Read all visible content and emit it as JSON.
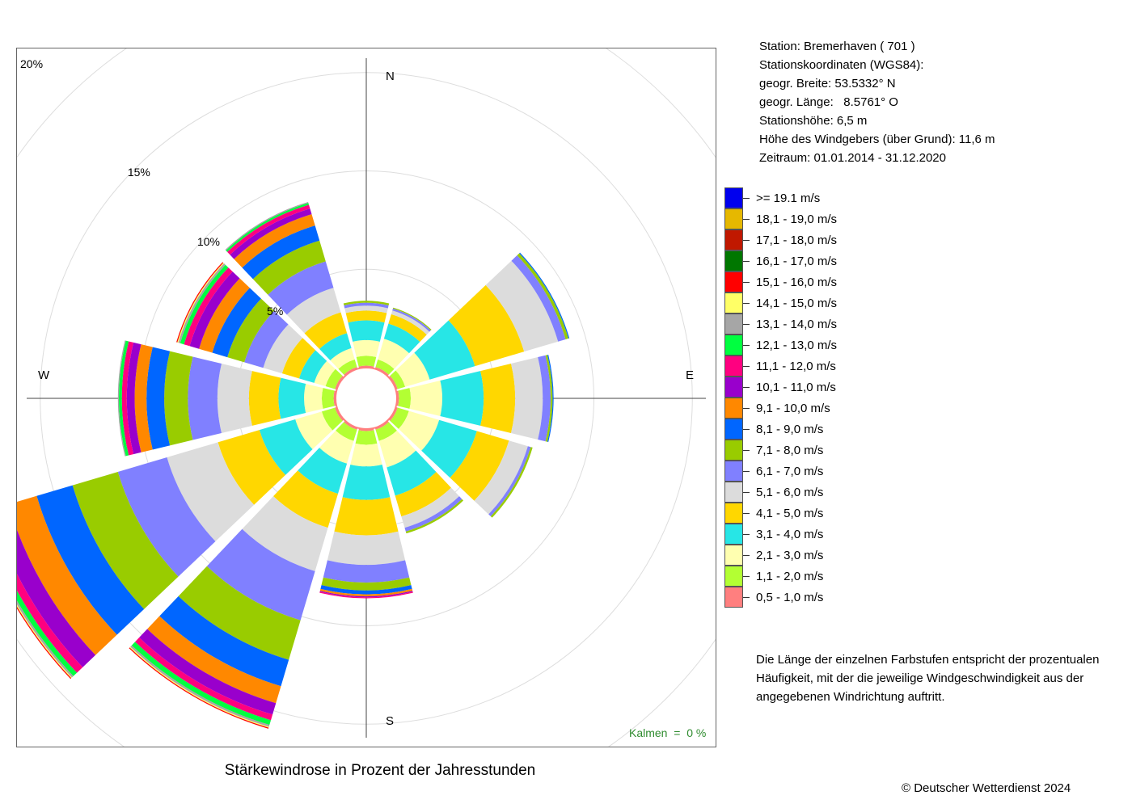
{
  "station": {
    "line1": "Station:  Bremerhaven  ( 701 )",
    "line2": "Stationskoordinaten (WGS84):",
    "line3": "geogr. Breite: 53.5332° N",
    "line4": "geogr. Länge:   8.5761° O",
    "line5": "Stationshöhe: 6,5 m",
    "line6": "Höhe des Windgebers (über Grund): 11,6 m",
    "line7": "Zeitraum: 01.01.2014 - 31.12.2020"
  },
  "note": {
    "line1": "Die Länge der einzelnen Farbstufen entspricht der prozentualen",
    "line2": "Häufigkeit, mit der die jeweilige Windgeschwindigkeit aus der",
    "line3": "angegebenen Windrichtung auftritt."
  },
  "caption": "Stärkewindrose in Prozent der Jahresstunden",
  "calm": "Kalmen  =  0 %",
  "copyright": "© Deutscher Wetterdienst  2024",
  "chart_data": {
    "type": "polar-stacked-bar",
    "title": "Stärkewindrose in Prozent der Jahresstunden",
    "rmax": 20,
    "ring_values": [
      5,
      10,
      15,
      20
    ],
    "ring_labels": [
      "5%",
      "10%",
      "15%",
      "20%"
    ],
    "directions": [
      "N",
      "E",
      "S",
      "W"
    ],
    "sector_angles": [
      0,
      30,
      60,
      90,
      120,
      150,
      180,
      210,
      240,
      270,
      300,
      330
    ],
    "bins": [
      {
        "label": "0,5 - 1,0 m/s",
        "color": "#ff7f7f"
      },
      {
        "label": "1,1 - 2,0 m/s",
        "color": "#b3ff33"
      },
      {
        "label": "2,1 - 3,0 m/s",
        "color": "#ffffb0"
      },
      {
        "label": "3,1 - 4,0 m/s",
        "color": "#27e6e6"
      },
      {
        "label": "4,1 - 5,0 m/s",
        "color": "#ffd700"
      },
      {
        "label": "5,1 - 6,0 m/s",
        "color": "#dcdcdc"
      },
      {
        "label": "6,1 - 7,0 m/s",
        "color": "#8080ff"
      },
      {
        "label": "7,1 - 8,0 m/s",
        "color": "#99cc00"
      },
      {
        "label": "8,1 - 9,0 m/s",
        "color": "#0066ff"
      },
      {
        "label": "9,1 - 10,0 m/s",
        "color": "#ff8800"
      },
      {
        "label": "10,1 - 11,0 m/s",
        "color": "#9900cc"
      },
      {
        "label": "11,1 - 12,0 m/s",
        "color": "#ff0080"
      },
      {
        "label": "12,1 - 13,0 m/s",
        "color": "#00ff40"
      },
      {
        "label": "13,1 - 14,0 m/s",
        "color": "#a6a6a6"
      },
      {
        "label": "14,1 - 15,0 m/s",
        "color": "#ffff66"
      },
      {
        "label": "15,1 - 16,0 m/s",
        "color": "#ff0000"
      },
      {
        "label": "16,1 - 17,0 m/s",
        "color": "#007700"
      },
      {
        "label": "17,1 - 18,0 m/s",
        "color": "#c01800"
      },
      {
        "label": "18,1 - 19,0 m/s",
        "color": "#e6b800"
      },
      {
        "label": ">= 19.1 m/s",
        "color": "#0000ee"
      }
    ],
    "sectors": [
      {
        "angle": 0,
        "values": [
          0.1,
          0.5,
          0.8,
          1.0,
          0.5,
          0.25,
          0.15,
          0.1,
          0,
          0,
          0,
          0,
          0,
          0,
          0,
          0,
          0,
          0,
          0,
          0
        ]
      },
      {
        "angle": 30,
        "values": [
          0.1,
          0.4,
          1.1,
          0.8,
          0.5,
          0.2,
          0.1,
          0.05,
          0,
          0,
          0,
          0,
          0,
          0,
          0,
          0,
          0,
          0,
          0,
          0
        ]
      },
      {
        "angle": 60,
        "values": [
          0.1,
          0.4,
          1.3,
          2.4,
          2.6,
          1.8,
          0.4,
          0.15,
          0.05,
          0,
          0,
          0,
          0,
          0,
          0,
          0,
          0,
          0,
          0,
          0
        ]
      },
      {
        "angle": 90,
        "values": [
          0.1,
          0.6,
          1.6,
          2.1,
          1.6,
          1.4,
          0.4,
          0.1,
          0.05,
          0,
          0,
          0,
          0,
          0,
          0,
          0,
          0,
          0,
          0,
          0
        ]
      },
      {
        "angle": 120,
        "values": [
          0.1,
          0.6,
          1.6,
          2.0,
          1.7,
          1.0,
          0.15,
          0.1,
          0,
          0,
          0,
          0,
          0,
          0,
          0,
          0,
          0,
          0,
          0,
          0
        ]
      },
      {
        "angle": 150,
        "values": [
          0.1,
          0.6,
          1.4,
          1.5,
          1.1,
          0.6,
          0.2,
          0.1,
          0,
          0,
          0,
          0,
          0,
          0,
          0,
          0,
          0,
          0,
          0,
          0
        ]
      },
      {
        "angle": 180,
        "values": [
          0.1,
          0.7,
          1.1,
          1.7,
          1.8,
          1.5,
          0.9,
          0.4,
          0.2,
          0.1,
          0.05,
          0.05,
          0,
          0,
          0,
          0,
          0,
          0,
          0,
          0
        ]
      },
      {
        "angle": 210,
        "values": [
          0.1,
          0.6,
          1.2,
          1.6,
          1.8,
          2.3,
          2.6,
          2.1,
          1.4,
          0.9,
          0.6,
          0.3,
          0.25,
          0.1,
          0.05,
          0.05,
          0,
          0,
          0,
          0
        ]
      },
      {
        "angle": 240,
        "values": [
          0.1,
          0.7,
          1.4,
          1.9,
          2.2,
          2.7,
          2.6,
          2.4,
          1.9,
          1.5,
          0.9,
          0.4,
          0.25,
          0.1,
          0.05,
          0.05,
          0,
          0,
          0,
          0
        ]
      },
      {
        "angle": 270,
        "values": [
          0.1,
          0.6,
          0.9,
          1.3,
          1.5,
          1.6,
          1.5,
          1.2,
          0.9,
          0.6,
          0.4,
          0.25,
          0.15,
          0.05,
          0,
          0,
          0,
          0,
          0,
          0
        ]
      },
      {
        "angle": 300,
        "values": [
          0.1,
          0.5,
          0.6,
          0.8,
          0.9,
          1.0,
          1.0,
          0.9,
          0.8,
          0.7,
          0.5,
          0.3,
          0.2,
          0.1,
          0.05,
          0.05,
          0,
          0,
          0,
          0
        ]
      },
      {
        "angle": 330,
        "values": [
          0.1,
          0.4,
          0.6,
          0.8,
          1.1,
          1.3,
          1.4,
          1.1,
          0.8,
          0.6,
          0.3,
          0.2,
          0.1,
          0.05,
          0,
          0,
          0,
          0,
          0,
          0
        ]
      }
    ]
  }
}
